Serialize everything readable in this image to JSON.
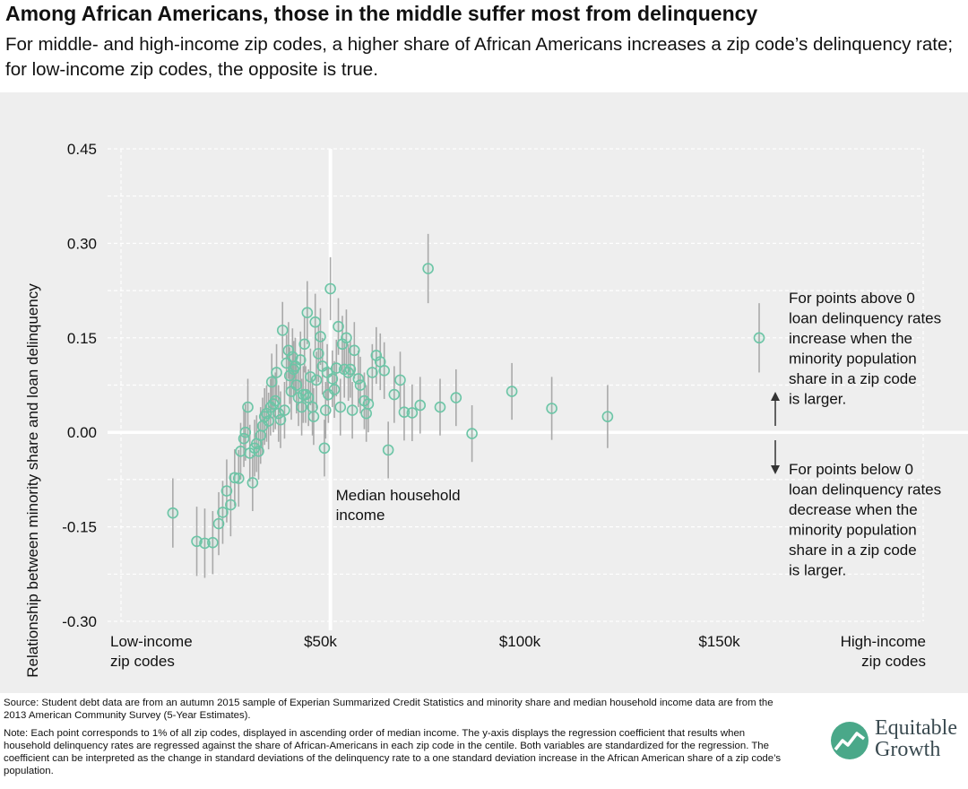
{
  "header": {
    "title": "Among African Americans, those in the middle suffer most from delinquency",
    "subtitle": "For middle- and high-income zip codes, a higher share of African Americans increases a zip code’s delinquency rate; for low-income zip codes, the opposite is true."
  },
  "footer": {
    "source": "Source: Student debt data are from an autumn 2015 sample of Experian Summarized Credit Statistics and minority share and median household income data are from the 2013 American Community Survey (5-Year Estimates).",
    "note": "Note: Each point corresponds to 1% of all zip codes, displayed in ascending order of median income. The y-axis displays the regression coefficient that results when household delinquency rates are regressed against the share of African-Americans in each zip code in the centile. Both variables are standardized for the regression. The coefficient can be interpreted as the change in standard deviations of the delinquency rate to a one standard deviation increase in the African American share of a zip code’s population."
  },
  "logo": {
    "line1": "Equitable",
    "line2": "Growth"
  },
  "colors": {
    "point": "#6cc5a6",
    "errorbar": "#a9a9a9",
    "background": "#eeeeee",
    "median_line": "#ffffff",
    "logo": "#4aa889"
  },
  "chart_data": {
    "type": "scatter",
    "title": "Among African Americans, those in the middle suffer most from delinquency",
    "ylabel": "Relationship between minority share and loan delinquency",
    "xlabel": "",
    "x_units": "median household income ($)",
    "xlim": [
      0,
      200000
    ],
    "ylim": [
      -0.3,
      0.45
    ],
    "yticks": [
      -0.3,
      -0.15,
      0.0,
      0.15,
      0.3,
      0.45
    ],
    "ytick_labels": [
      "-0.30",
      "-0.15",
      "0.00",
      "0.15",
      "0.30",
      "0.45"
    ],
    "xticks": [
      {
        "x": 0,
        "label": "Low-income\nzip codes",
        "align": "start"
      },
      {
        "x": 50000,
        "label": "$50k",
        "align": "middle"
      },
      {
        "x": 100000,
        "label": "$100k",
        "align": "middle"
      },
      {
        "x": 150000,
        "label": "$150k",
        "align": "middle"
      },
      {
        "x": 200000,
        "label": "High-income\nzip codes",
        "align": "end"
      }
    ],
    "grid": "dashed horizontal at y ticks and minor lines at ±0.075 steps",
    "median_line": {
      "x": 52500,
      "label": "Median household income"
    },
    "annotations": {
      "above": "For points above 0 loan delinquency rates increase when the minority population share in a zip code is larger.",
      "below": "For points below 0 loan delinquency rates decrease when the minority population share in a zip code is larger."
    },
    "points": [
      [
        13000,
        -0.128,
        0.055
      ],
      [
        19000,
        -0.173,
        0.055
      ],
      [
        21000,
        -0.176,
        0.055
      ],
      [
        23000,
        -0.175,
        0.05
      ],
      [
        24500,
        -0.145,
        0.05
      ],
      [
        25500,
        -0.127,
        0.05
      ],
      [
        26500,
        -0.093,
        0.05
      ],
      [
        27500,
        -0.115,
        0.05
      ],
      [
        28500,
        -0.072,
        0.045
      ],
      [
        29500,
        -0.073,
        0.045
      ],
      [
        30000,
        -0.03,
        0.045
      ],
      [
        30800,
        -0.01,
        0.045
      ],
      [
        31200,
        0.0,
        0.045
      ],
      [
        31800,
        0.04,
        0.045
      ],
      [
        32300,
        -0.033,
        0.045
      ],
      [
        33000,
        -0.08,
        0.045
      ],
      [
        33500,
        -0.025,
        0.045
      ],
      [
        34000,
        -0.018,
        0.045
      ],
      [
        34500,
        -0.03,
        0.045
      ],
      [
        35000,
        -0.005,
        0.045
      ],
      [
        35500,
        0.01,
        0.045
      ],
      [
        36000,
        0.025,
        0.045
      ],
      [
        36500,
        0.03,
        0.045
      ],
      [
        37000,
        0.018,
        0.045
      ],
      [
        37500,
        0.04,
        0.045
      ],
      [
        37800,
        0.08,
        0.045
      ],
      [
        38200,
        0.045,
        0.045
      ],
      [
        38700,
        0.05,
        0.045
      ],
      [
        39000,
        0.095,
        0.045
      ],
      [
        39500,
        0.03,
        0.045
      ],
      [
        40000,
        0.02,
        0.045
      ],
      [
        40500,
        0.162,
        0.045
      ],
      [
        41000,
        0.035,
        0.045
      ],
      [
        41500,
        0.11,
        0.045
      ],
      [
        42000,
        0.13,
        0.045
      ],
      [
        42300,
        0.09,
        0.045
      ],
      [
        42700,
        0.065,
        0.045
      ],
      [
        43000,
        0.12,
        0.045
      ],
      [
        43300,
        0.1,
        0.045
      ],
      [
        43700,
        0.105,
        0.045
      ],
      [
        44000,
        0.075,
        0.045
      ],
      [
        44500,
        0.055,
        0.045
      ],
      [
        45000,
        0.115,
        0.045
      ],
      [
        45300,
        0.04,
        0.045
      ],
      [
        45700,
        0.06,
        0.045
      ],
      [
        46000,
        0.14,
        0.045
      ],
      [
        46300,
        0.06,
        0.045
      ],
      [
        46700,
        0.19,
        0.05
      ],
      [
        47000,
        0.055,
        0.045
      ],
      [
        47500,
        0.088,
        0.045
      ],
      [
        48000,
        0.04,
        0.045
      ],
      [
        48300,
        0.025,
        0.045
      ],
      [
        48700,
        0.175,
        0.045
      ],
      [
        49000,
        0.083,
        0.045
      ],
      [
        49500,
        0.125,
        0.045
      ],
      [
        50000,
        0.152,
        0.045
      ],
      [
        50500,
        0.105,
        0.045
      ],
      [
        51000,
        -0.025,
        0.045
      ],
      [
        51300,
        0.035,
        0.045
      ],
      [
        51700,
        0.095,
        0.045
      ],
      [
        52000,
        0.06,
        0.045
      ],
      [
        52500,
        0.228,
        0.05
      ],
      [
        53000,
        0.085,
        0.045
      ],
      [
        53500,
        0.068,
        0.045
      ],
      [
        54000,
        0.102,
        0.045
      ],
      [
        54500,
        0.168,
        0.045
      ],
      [
        55000,
        0.04,
        0.045
      ],
      [
        55500,
        0.14,
        0.045
      ],
      [
        56000,
        0.1,
        0.045
      ],
      [
        56500,
        0.15,
        0.045
      ],
      [
        57000,
        0.095,
        0.045
      ],
      [
        57500,
        0.1,
        0.045
      ],
      [
        58000,
        0.035,
        0.045
      ],
      [
        58500,
        0.13,
        0.045
      ],
      [
        59500,
        0.085,
        0.045
      ],
      [
        60000,
        0.075,
        0.045
      ],
      [
        61000,
        0.05,
        0.045
      ],
      [
        61500,
        0.03,
        0.045
      ],
      [
        62000,
        0.045,
        0.045
      ],
      [
        63000,
        0.095,
        0.045
      ],
      [
        64000,
        0.122,
        0.045
      ],
      [
        65000,
        0.112,
        0.045
      ],
      [
        66000,
        0.098,
        0.045
      ],
      [
        67000,
        -0.028,
        0.045
      ],
      [
        68500,
        0.06,
        0.045
      ],
      [
        70000,
        0.083,
        0.045
      ],
      [
        71000,
        0.032,
        0.045
      ],
      [
        73000,
        0.031,
        0.045
      ],
      [
        75000,
        0.043,
        0.045
      ],
      [
        77000,
        0.26,
        0.055
      ],
      [
        80000,
        0.04,
        0.045
      ],
      [
        84000,
        0.055,
        0.045
      ],
      [
        88000,
        -0.002,
        0.045
      ],
      [
        98000,
        0.065,
        0.045
      ],
      [
        108000,
        0.038,
        0.05
      ],
      [
        122000,
        0.025,
        0.05
      ],
      [
        160000,
        0.15,
        0.055
      ]
    ]
  }
}
